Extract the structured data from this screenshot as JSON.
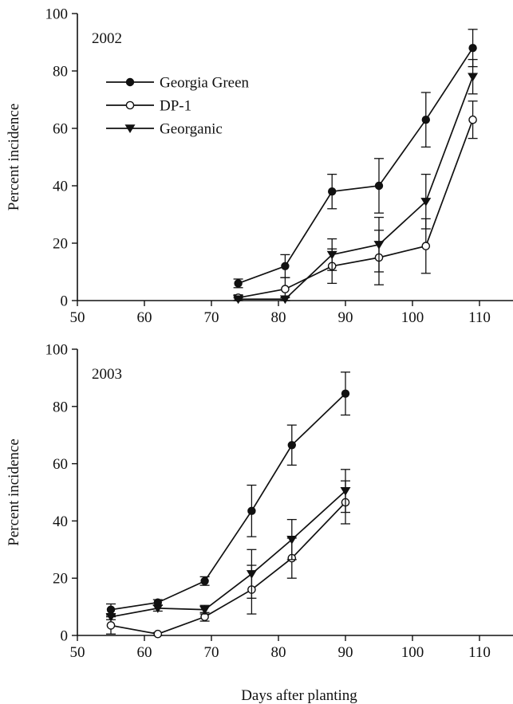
{
  "figure": {
    "xlabel": "Days after planting",
    "ylabel": "Percent incidence"
  },
  "chart_data": [
    {
      "type": "line",
      "panel_label": "2002",
      "xlabel": "",
      "ylabel": "Percent incidence",
      "xlim": [
        50,
        115
      ],
      "ylim": [
        0,
        100
      ],
      "xticks": [
        50,
        60,
        70,
        80,
        90,
        100,
        110
      ],
      "yticks": [
        0,
        20,
        40,
        60,
        80,
        100
      ],
      "legend": {
        "placement": "top-left",
        "show": true
      },
      "series": [
        {
          "name": "Georgia Green",
          "marker": "filled-circle",
          "x": [
            74,
            81,
            88,
            95,
            102,
            109
          ],
          "y": [
            6,
            12,
            38,
            40,
            63,
            88
          ],
          "err": [
            1.5,
            4,
            6,
            9.5,
            9.5,
            6.5
          ]
        },
        {
          "name": "DP-1",
          "marker": "open-circle",
          "x": [
            74,
            81,
            88,
            95,
            102,
            109
          ],
          "y": [
            1,
            4,
            12,
            15,
            19,
            63
          ],
          "err": [
            1,
            4,
            6,
            9.5,
            9.5,
            6.5
          ]
        },
        {
          "name": "Georganic",
          "marker": "filled-triangle-down",
          "x": [
            74,
            81,
            88,
            95,
            102,
            109
          ],
          "y": [
            0.5,
            0.5,
            16,
            19.5,
            34.5,
            78
          ],
          "err": [
            0.5,
            0.5,
            5.5,
            9.5,
            9.5,
            6
          ]
        }
      ]
    },
    {
      "type": "line",
      "panel_label": "2003",
      "xlabel": "Days after planting",
      "ylabel": "Percent incidence",
      "xlim": [
        50,
        115
      ],
      "ylim": [
        0,
        100
      ],
      "xticks": [
        50,
        60,
        70,
        80,
        90,
        100,
        110
      ],
      "yticks": [
        0,
        20,
        40,
        60,
        80,
        100
      ],
      "legend": {
        "show": false
      },
      "series": [
        {
          "name": "Georgia Green",
          "marker": "filled-circle",
          "x": [
            55,
            62,
            69,
            76,
            82,
            90
          ],
          "y": [
            9,
            11.5,
            19,
            43.5,
            66.5,
            84.5
          ],
          "err": [
            2,
            1,
            1.5,
            9,
            7,
            7.5
          ]
        },
        {
          "name": "DP-1",
          "marker": "open-circle",
          "x": [
            55,
            62,
            69,
            76,
            82,
            90
          ],
          "y": [
            3.5,
            0.5,
            6.5,
            16,
            27,
            46.5
          ],
          "err": [
            3,
            0.5,
            1.5,
            8.5,
            7,
            7.5
          ]
        },
        {
          "name": "Georganic",
          "marker": "filled-triangle-down",
          "x": [
            55,
            62,
            69,
            76,
            82,
            90
          ],
          "y": [
            6.5,
            9.5,
            9,
            21.5,
            33.5,
            50.5
          ],
          "err": [
            1,
            1,
            1.5,
            8.5,
            7,
            7.5
          ]
        }
      ]
    }
  ]
}
